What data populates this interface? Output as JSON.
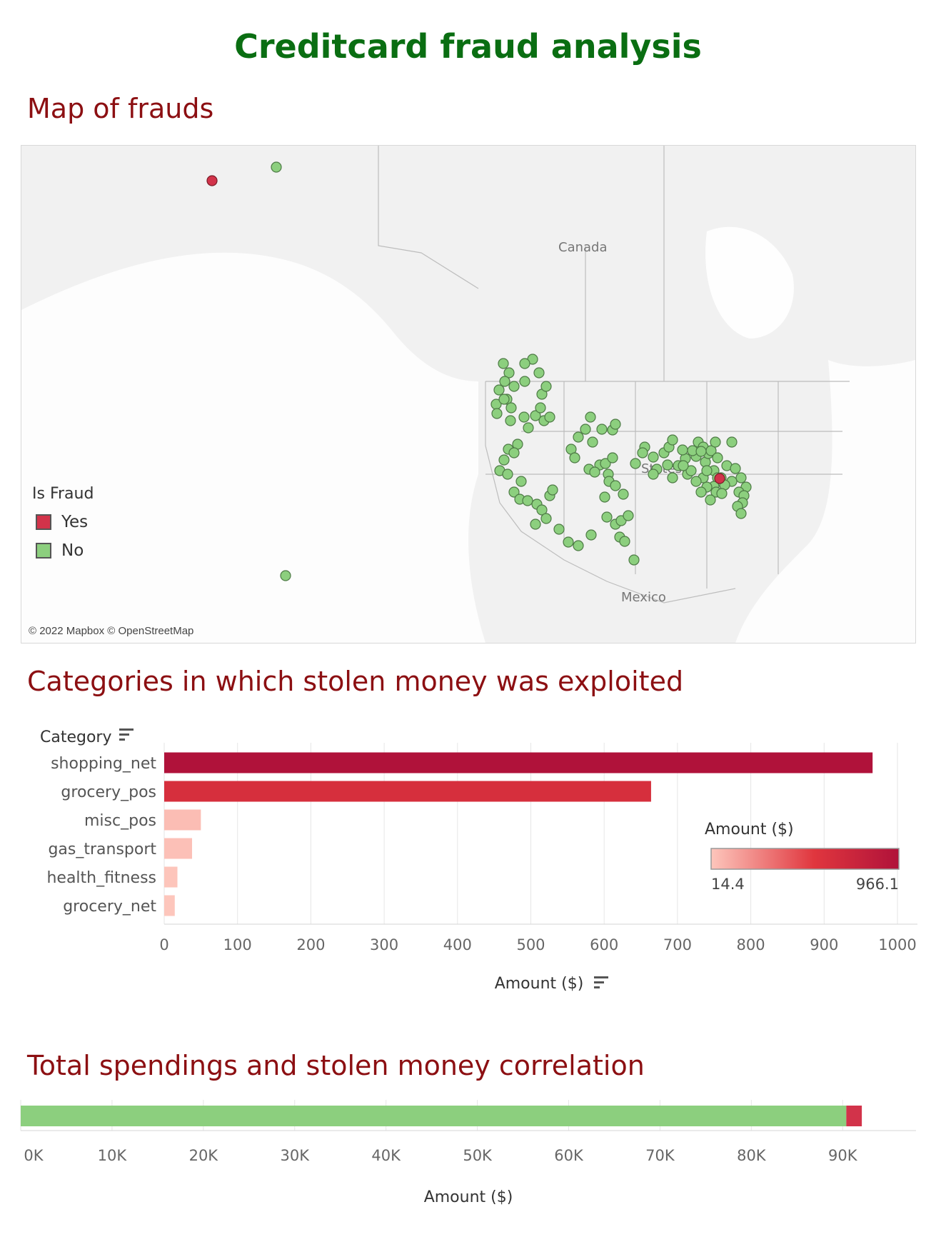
{
  "title": "Creditcard fraud analysis",
  "sections": {
    "map": "Map of frauds",
    "categories": "Categories in which stolen money was exploited",
    "total": "Total spendings and stolen money correlation"
  },
  "map": {
    "legend_title": "Is Fraud",
    "legend": [
      {
        "label": "Yes",
        "color": "#d2334a"
      },
      {
        "label": "No",
        "color": "#8ccf7e"
      }
    ],
    "labels": {
      "canada": "Canada",
      "states": "States",
      "mexico": "Mexico"
    },
    "credit": "© 2022 Mapbox © OpenStreetMap"
  },
  "chart_data": [
    {
      "type": "bar",
      "orientation": "horizontal",
      "category_header": "Category",
      "categories": [
        "shopping_net",
        "grocery_pos",
        "misc_pos",
        "gas_transport",
        "health_fitness",
        "grocery_net"
      ],
      "values": [
        966.1,
        664,
        50,
        38,
        18,
        14.4
      ],
      "xlabel": "Amount ($)",
      "xlim": [
        0,
        1000
      ],
      "xticks": [
        0,
        100,
        200,
        300,
        400,
        500,
        600,
        700,
        800,
        900,
        1000
      ],
      "grid": true,
      "color_legend": {
        "title": "Amount ($)",
        "min": "14.4",
        "max": "966.1",
        "min_color": "#fdc6bc",
        "mid_color": "#e0363e",
        "max_color": "#b0123a"
      }
    },
    {
      "type": "bar",
      "orientation": "horizontal",
      "stacked": true,
      "series": [
        {
          "name": "No",
          "values": [
            90400
          ],
          "color": "#8ccf7e"
        },
        {
          "name": "Yes",
          "values": [
            1700
          ],
          "color": "#d2334a"
        }
      ],
      "xlabel": "Amount ($)",
      "xlim": [
        0,
        96000
      ],
      "xticks": [
        "0K",
        "10K",
        "20K",
        "30K",
        "40K",
        "50K",
        "60K",
        "70K",
        "80K",
        "90K"
      ],
      "grid": true
    }
  ]
}
